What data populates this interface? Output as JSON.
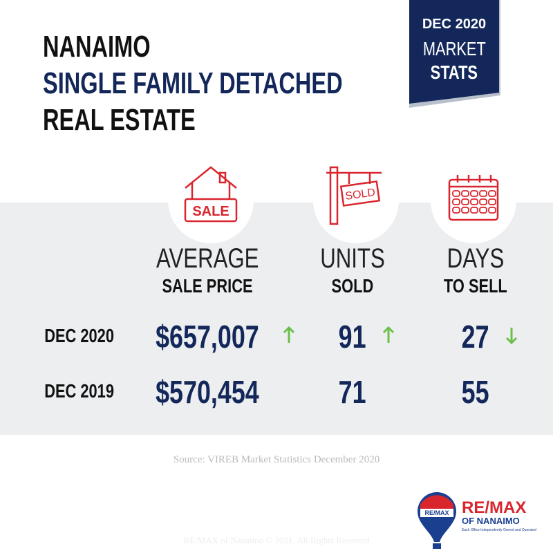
{
  "header": {
    "title_lines": [
      "NANAIMO",
      "SINGLE FAMILY DETACHED",
      "REAL ESTATE"
    ]
  },
  "badge": {
    "date": "DEC 2020",
    "line1": "MARKET",
    "line2": "STATS"
  },
  "table": {
    "columns": [
      {
        "icon_text": "SALE",
        "top": "AVERAGE",
        "bottom": "SALE PRICE"
      },
      {
        "icon_text": "SOLD",
        "top": "UNITS",
        "bottom": "SOLD"
      },
      {
        "top": "DAYS",
        "bottom": "TO SELL"
      }
    ],
    "rows": [
      {
        "label": "DEC 2020",
        "cells": [
          "$657,007",
          "91",
          "27"
        ],
        "trends": [
          "up",
          "up",
          "down"
        ]
      },
      {
        "label": "DEC 2019",
        "cells": [
          "$570,454",
          "71",
          "55"
        ]
      }
    ],
    "trend_color": "#6cc04a"
  },
  "source": "Source: VIREB Market Statistics December 2020",
  "logo": {
    "balloon": "RE/MAX",
    "name": "RE/MAX",
    "sub": "OF NANAIMO",
    "note": "Each Office Independently Owned and Operated"
  },
  "footer": "RE/MAX of Nanaimo © 2021. All Rights Reserved"
}
